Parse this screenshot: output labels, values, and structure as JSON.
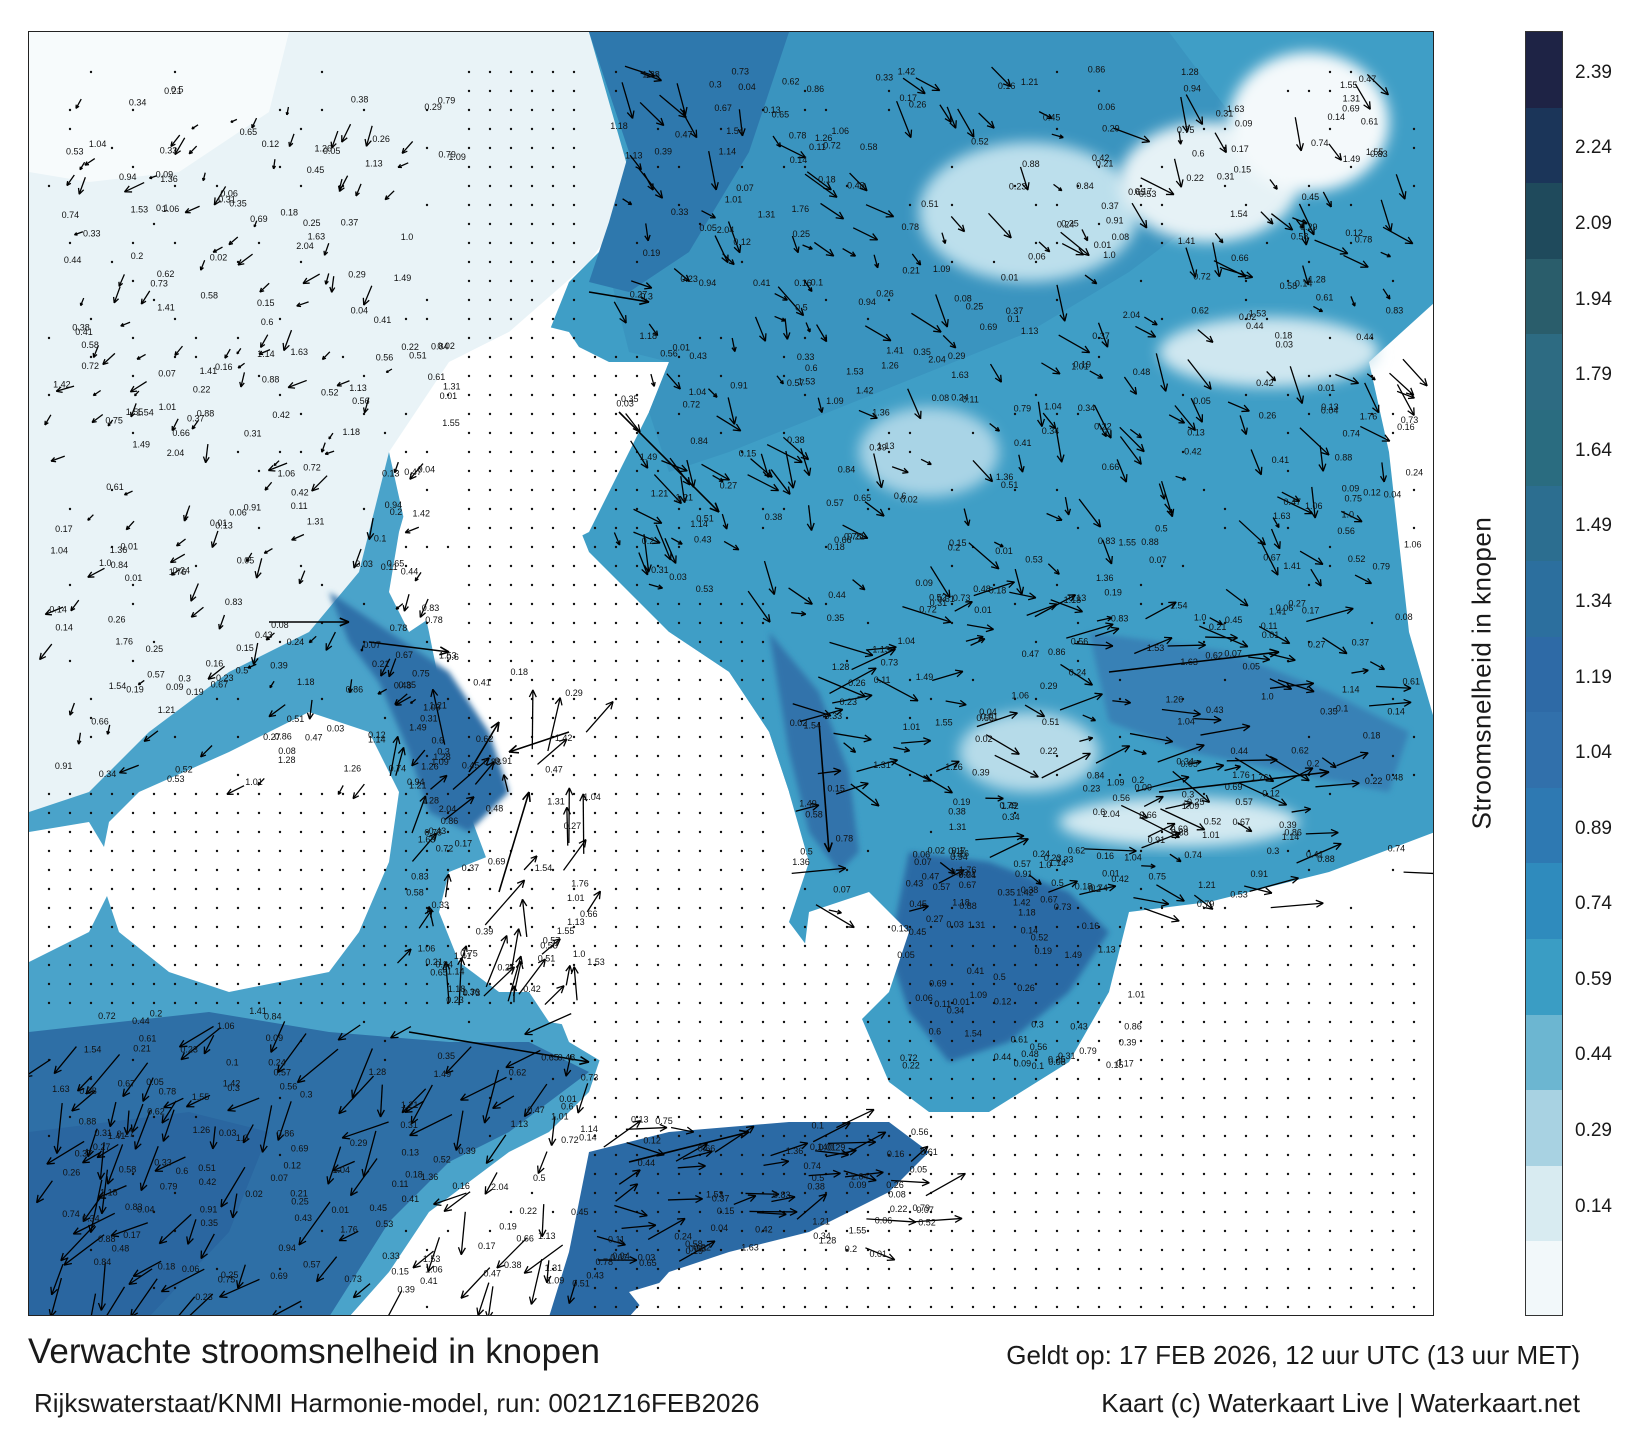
{
  "map": {
    "title": "Verwachte stroomsnelheid in knopen",
    "model_run": "Rijkswaterstaat/KNMI Harmonie-model, run: 0021Z16FEB2026",
    "valid_time": "Geldt op: 17 FEB 2026, 12 uur UTC (13 uur MET)",
    "credit": "Kaart (c) Waterkaart Live | Waterkaart.net"
  },
  "legend": {
    "label": "Stroomsnelheid in knopen",
    "ticks": [
      "2.39",
      "2.24",
      "2.09",
      "1.94",
      "1.79",
      "1.64",
      "1.49",
      "1.34",
      "1.19",
      "1.04",
      "0.89",
      "0.74",
      "0.59",
      "0.44",
      "0.29",
      "0.14"
    ],
    "colors": [
      "#1e2345",
      "#1b3559",
      "#1f4a5c",
      "#2a5d6b",
      "#2d6b82",
      "#2a6c80",
      "#2c6e90",
      "#2c6f9e",
      "#2e6aa6",
      "#3170ab",
      "#2e79b2",
      "#2f8bbd",
      "#3a9dc4",
      "#6cb6d1",
      "#a8d2e2",
      "#d8ebf1",
      "#f2f8fa"
    ]
  },
  "icons": {
    "current_arrow": "current-arrow-icon",
    "calm_dot": "calm-point-icon"
  },
  "colors": {
    "water_fast": "#2c6ea8",
    "water_mid": "#3a97c2",
    "water_slow": "#bfdfeb",
    "land": "#ffffff",
    "arrow": "#000000"
  },
  "speed_labels": [
    "0.17",
    "0.18",
    "0.21",
    "0.33",
    "0.31",
    "0.25",
    "0.41",
    "0.88",
    "0.47",
    "0.6",
    "1.13",
    "0.72",
    "1.06",
    "0.51",
    "0.84",
    "1.41",
    "1.36",
    "0.83",
    "1.28",
    "0.94",
    "1.21",
    "1.53",
    "2.04",
    "1.55",
    "1.63",
    "0.78",
    "0.75",
    "0.66",
    "0.65",
    "0.58",
    "0.53",
    "0.42",
    "0.37",
    "0.29",
    "0.15",
    "0.09",
    "0.08",
    "0.03",
    "0.01",
    "0.12",
    "0.13",
    "0.16",
    "0.26",
    "0.14",
    "0.24",
    "0.04",
    "0.11",
    "0.19",
    "0.05",
    "0.01",
    "0.02",
    "0.07",
    "0.06",
    "0.1",
    "0.2",
    "0.22",
    "0.34",
    "0.38",
    "0.44",
    "0.5",
    "0.52",
    "0.56",
    "0.61",
    "0.67",
    "0.74",
    "0.79",
    "0.86",
    "0.91",
    "1.0",
    "1.01",
    "1.04",
    "1.09",
    "1.14",
    "1.18",
    "1.26",
    "1.31",
    "1.42",
    "1.49",
    "1.54",
    "1.76",
    "0.45",
    "0.39",
    "0.27",
    "0.23",
    "0.3",
    "0.35",
    "0.43",
    "0.48",
    "0.57",
    "0.62",
    "0.69",
    "0.73"
  ]
}
